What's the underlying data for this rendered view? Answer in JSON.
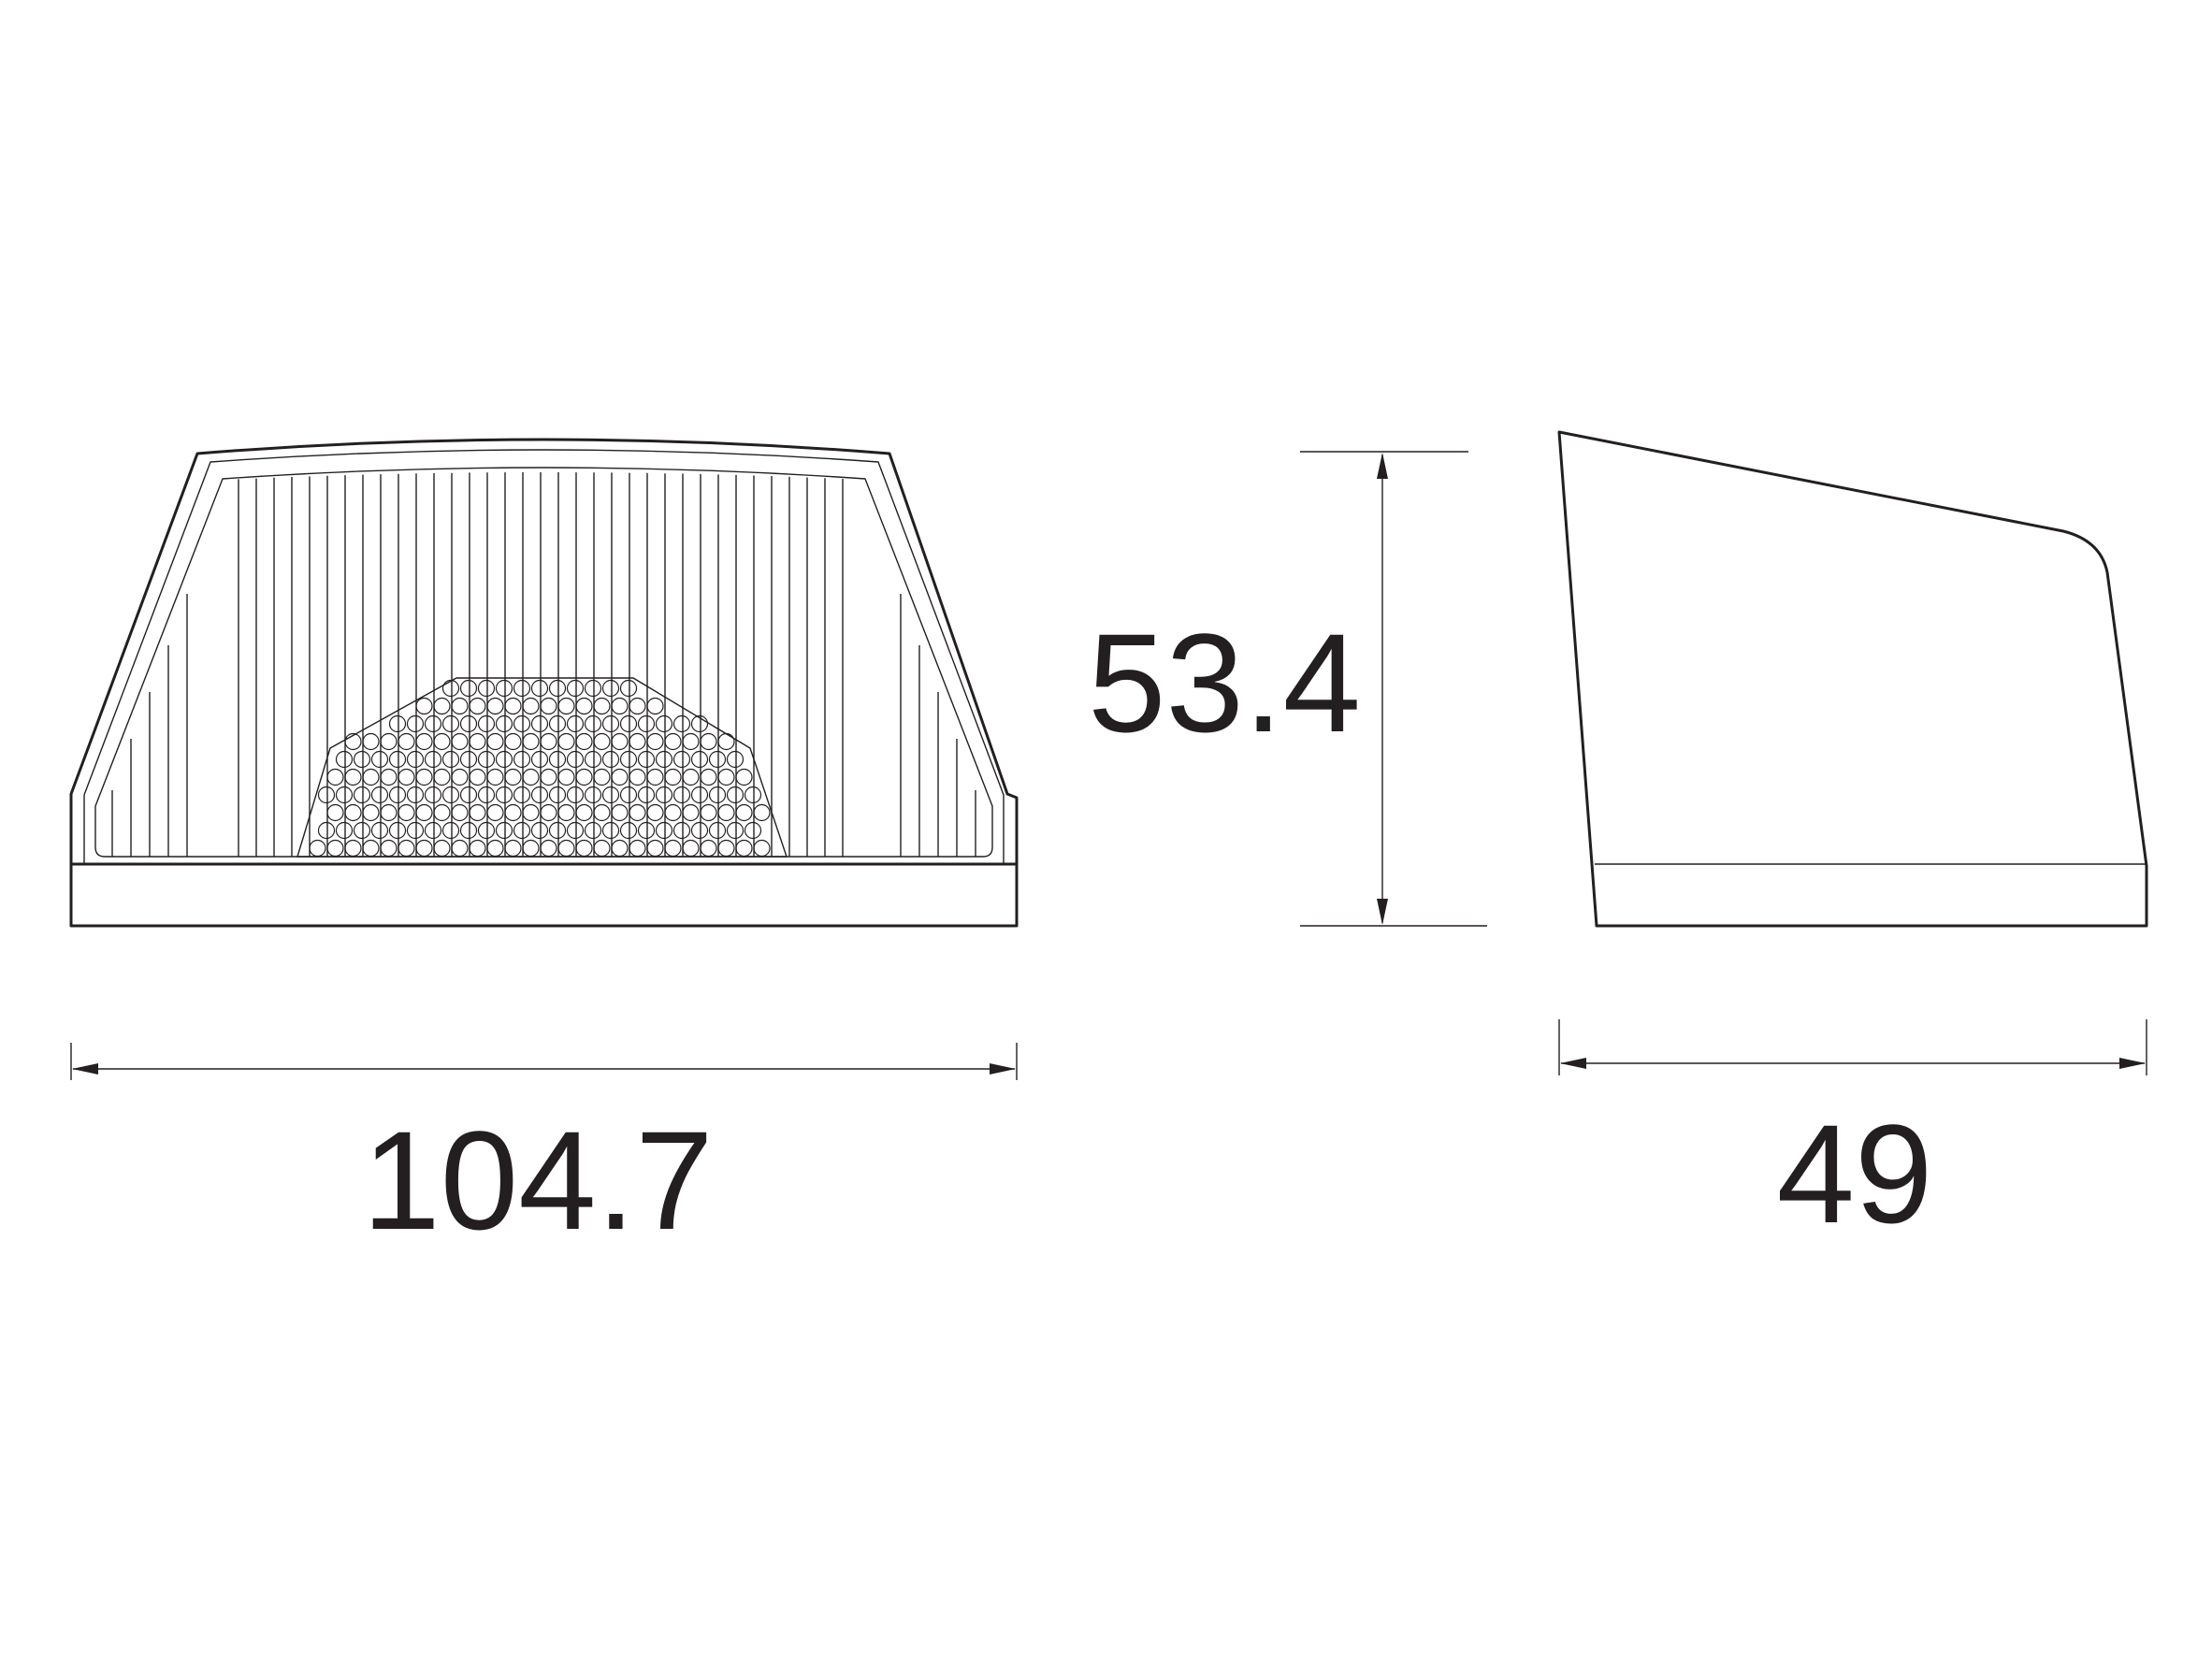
{
  "dimensions": {
    "width": "104.7",
    "height": "53.4",
    "depth": "49"
  },
  "colors": {
    "line": "#231f20",
    "background": "#ffffff"
  }
}
